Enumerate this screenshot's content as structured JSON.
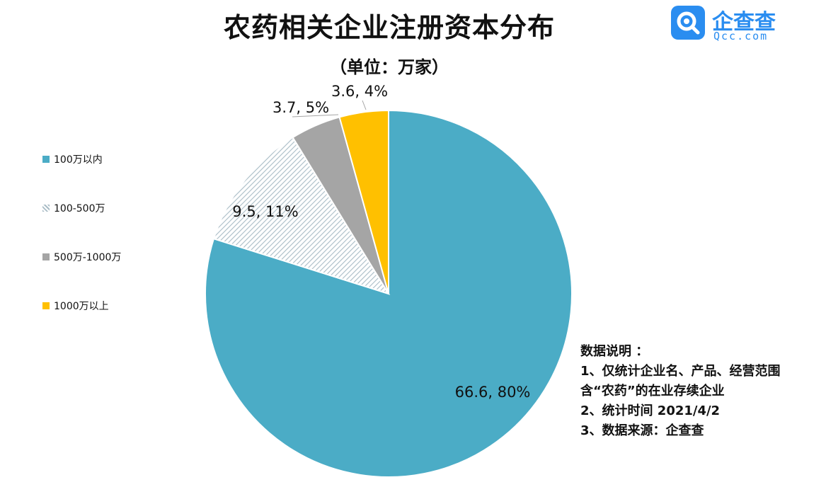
{
  "header": {
    "title": "农药相关企业注册资本分布",
    "subtitle": "（单位：万家）"
  },
  "brand": {
    "name": "企查查",
    "domain": "Qcc.com",
    "color": "#2a8df0"
  },
  "chart_data": {
    "type": "pie",
    "title": "农药相关企业注册资本分布",
    "subtitle": "（单位：万家）",
    "legend_position": "left",
    "slices": [
      {
        "name": "100万以内",
        "value": 66.6,
        "percent": 80,
        "label": "66.6, 80%",
        "color": "#4bacc6",
        "pattern": "solid"
      },
      {
        "name": "100-500万",
        "value": 9.5,
        "percent": 11,
        "label": "9.5, 11%",
        "color": "#a9bcc6",
        "pattern": "hatch"
      },
      {
        "name": "500万-1000万",
        "value": 3.7,
        "percent": 5,
        "label": "3.7, 5%",
        "color": "#a5a5a5",
        "pattern": "solid"
      },
      {
        "name": "1000万以上",
        "value": 3.6,
        "percent": 4,
        "label": "3.6, 4%",
        "color": "#ffc000",
        "pattern": "solid"
      }
    ]
  },
  "notes": {
    "heading": "数据说明 ：",
    "lines": [
      "1、仅统计企业名、产品、经营范围",
      "含“农药”的在业存续企业",
      "2、统计时间 2021/4/2",
      "3、数据来源：企查查"
    ]
  }
}
